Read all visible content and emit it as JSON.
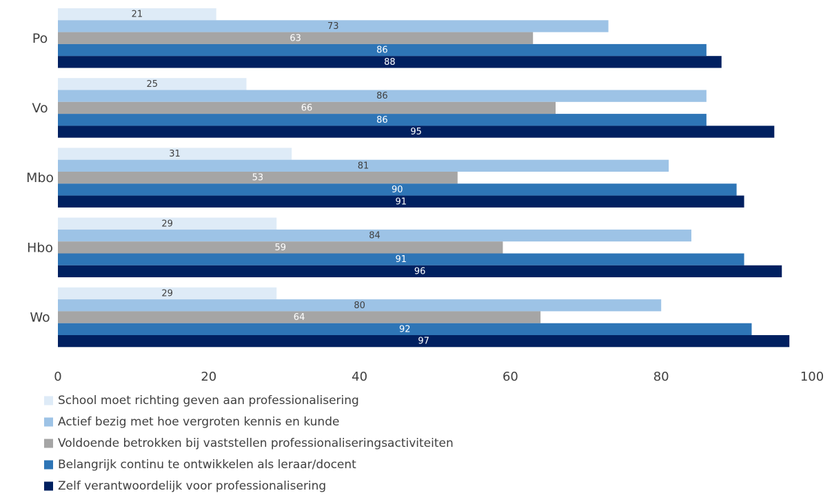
{
  "chart_data": {
    "type": "bar",
    "orientation": "horizontal",
    "categories": [
      "Po",
      "Vo",
      "Mbo",
      "Hbo",
      "Wo"
    ],
    "series": [
      {
        "name": "School moet richting geven aan professionalisering",
        "color": "#deebf7",
        "label_color": "#404040",
        "values": [
          21,
          25,
          31,
          29,
          29
        ]
      },
      {
        "name": "Actief bezig met hoe vergroten kennis en kunde",
        "color": "#9dc3e6",
        "label_color": "#404040",
        "values": [
          73,
          86,
          81,
          84,
          80
        ]
      },
      {
        "name": "Voldoende betrokken bij vaststellen professionaliseringsactiviteiten",
        "color": "#a5a5a5",
        "label_color": "#ffffff",
        "values": [
          63,
          66,
          53,
          59,
          64
        ]
      },
      {
        "name": "Belangrijk continu te ontwikkelen als leraar/docent",
        "color": "#2e75b6",
        "label_color": "#ffffff",
        "values": [
          86,
          86,
          90,
          91,
          92
        ]
      },
      {
        "name": "Zelf verantwoordelijk voor professionalisering",
        "color": "#002060",
        "label_color": "#ffffff",
        "values": [
          88,
          95,
          91,
          96,
          97
        ]
      }
    ],
    "xlim": [
      0,
      100
    ],
    "xticks": [
      "0",
      "20",
      "40",
      "60",
      "80",
      "100"
    ],
    "xlabel": "",
    "ylabel": "",
    "title": "",
    "grid": false,
    "legend_position": "bottom-left"
  }
}
